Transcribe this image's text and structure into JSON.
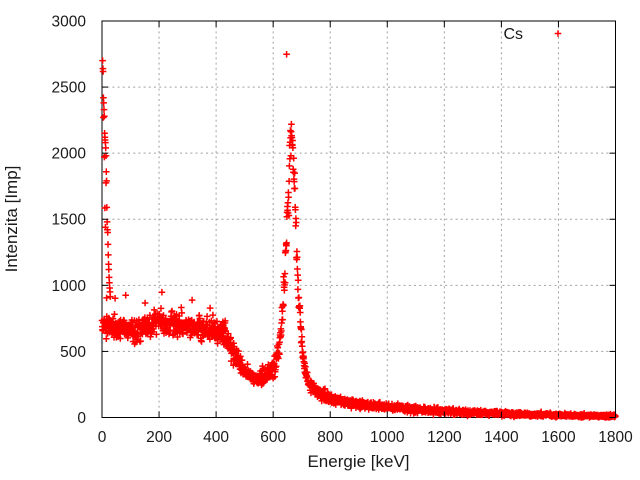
{
  "chart_data": {
    "type": "scatter",
    "title": "",
    "xlabel": "Energie [keV]",
    "ylabel": "Intenzita [Imp]",
    "xlim": [
      0,
      1800
    ],
    "ylim": [
      0,
      3000
    ],
    "x_ticks": [
      0,
      200,
      400,
      600,
      800,
      1000,
      1200,
      1400,
      1600,
      1800
    ],
    "y_ticks": [
      0,
      500,
      1000,
      1500,
      2000,
      2500,
      3000
    ],
    "grid": true,
    "legend_position": "top-right-inside",
    "colors": {
      "marker": "#ff0000",
      "grid": "#a0a0a0",
      "frame": "#000000",
      "text": "#1a1a1a"
    },
    "series": [
      {
        "name": "Cs",
        "color": "#ff0000",
        "marker": "plus",
        "n_channels": 2048,
        "seed": 1337,
        "noise_factor": 1.6,
        "profile": [
          [
            0,
            705
          ],
          [
            40,
            685
          ],
          [
            80,
            670
          ],
          [
            110,
            662
          ],
          [
            140,
            676
          ],
          [
            170,
            696
          ],
          [
            200,
            722
          ],
          [
            230,
            712
          ],
          [
            260,
            702
          ],
          [
            290,
            694
          ],
          [
            320,
            684
          ],
          [
            350,
            674
          ],
          [
            380,
            666
          ],
          [
            410,
            652
          ],
          [
            430,
            622
          ],
          [
            450,
            545
          ],
          [
            470,
            455
          ],
          [
            490,
            382
          ],
          [
            510,
            332
          ],
          [
            530,
            306
          ],
          [
            550,
            300
          ],
          [
            570,
            312
          ],
          [
            590,
            342
          ],
          [
            600,
            372
          ],
          [
            610,
            425
          ],
          [
            620,
            525
          ],
          [
            630,
            705
          ],
          [
            640,
            1010
          ],
          [
            648,
            1420
          ],
          [
            655,
            1810
          ],
          [
            660,
            2040
          ],
          [
            663,
            2090
          ],
          [
            668,
            2040
          ],
          [
            675,
            1740
          ],
          [
            682,
            1290
          ],
          [
            690,
            895
          ],
          [
            698,
            615
          ],
          [
            706,
            430
          ],
          [
            714,
            332
          ],
          [
            722,
            272
          ],
          [
            735,
            230
          ],
          [
            750,
            200
          ],
          [
            770,
            172
          ],
          [
            800,
            142
          ],
          [
            850,
            116
          ],
          [
            900,
            100
          ],
          [
            950,
            88
          ],
          [
            1000,
            78
          ],
          [
            1050,
            69
          ],
          [
            1100,
            61
          ],
          [
            1150,
            53
          ],
          [
            1200,
            47
          ],
          [
            1300,
            37
          ],
          [
            1400,
            29
          ],
          [
            1500,
            23
          ],
          [
            1600,
            18
          ],
          [
            1700,
            14
          ],
          [
            1800,
            11
          ]
        ],
        "low_energy_spike_points": [
          [
            2,
            2700
          ],
          [
            3,
            2640
          ],
          [
            4,
            2618
          ],
          [
            5,
            2420
          ],
          [
            5,
            2270
          ],
          [
            6,
            2380
          ],
          [
            7,
            2330
          ],
          [
            8,
            2280
          ],
          [
            8,
            1970
          ],
          [
            9,
            2150
          ],
          [
            10,
            2120
          ],
          [
            10,
            1585
          ],
          [
            11,
            2100
          ],
          [
            12,
            2080
          ],
          [
            12,
            1440
          ],
          [
            13,
            2040
          ],
          [
            14,
            1980
          ],
          [
            14,
            1775
          ],
          [
            15,
            1860
          ],
          [
            16,
            1790
          ],
          [
            16,
            905
          ],
          [
            17,
            1590
          ],
          [
            18,
            1480
          ],
          [
            19,
            1420
          ],
          [
            20,
            1400
          ],
          [
            21,
            1310
          ],
          [
            22,
            1230
          ],
          [
            23,
            1160
          ],
          [
            24,
            1120
          ],
          [
            25,
            1060
          ],
          [
            26,
            1020
          ],
          [
            27,
            980
          ],
          [
            28,
            950
          ],
          [
            29,
            915
          ]
        ],
        "outliers": [
          [
            647,
            2748
          ],
          [
            46,
            902
          ],
          [
            83,
            925
          ],
          [
            151,
            866
          ],
          [
            210,
            948
          ],
          [
            316,
            888
          ],
          [
            379,
            828
          ]
        ]
      }
    ]
  }
}
